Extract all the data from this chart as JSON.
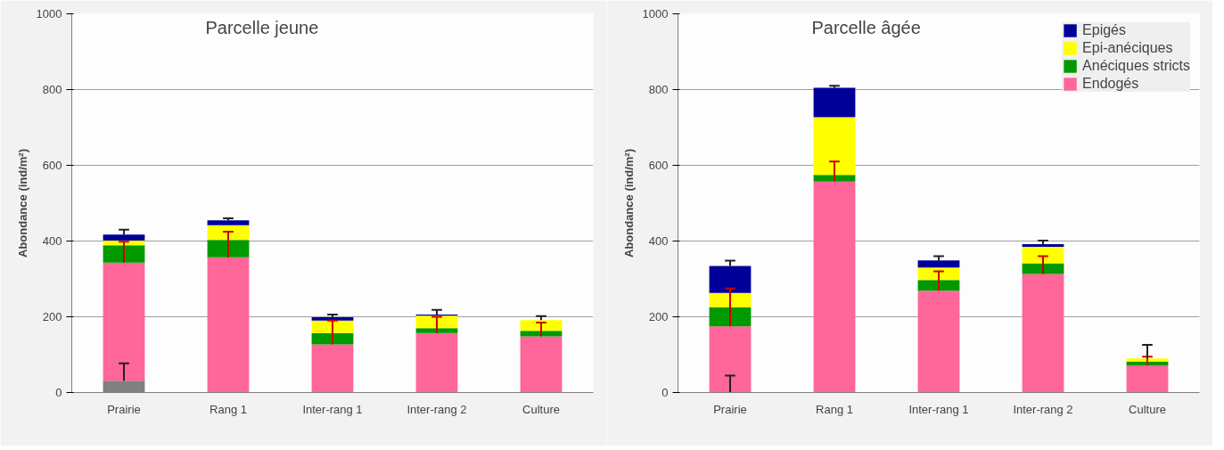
{
  "chart_data": [
    {
      "type": "bar",
      "title": "Parcelle jeune",
      "ylabel": "Abondance (ind/m²)",
      "stacked": true,
      "grid": "y",
      "legend": false,
      "categories": [
        "Prairie",
        "Rang 1",
        "Inter-rang 1",
        "Inter-rang 2",
        "Culture"
      ],
      "ylim": [
        0,
        1000
      ],
      "yticks": [
        0,
        200,
        400,
        600,
        800,
        1000
      ],
      "series": [
        {
          "color": "#808080",
          "values": [
            31,
            0,
            0,
            0,
            0
          ],
          "errors": [
            [
              31,
              77
            ],
            null,
            null,
            null,
            null
          ]
        },
        {
          "color": "#ff6699",
          "values": [
            312,
            357,
            127,
            157,
            148
          ],
          "errors": [
            [
              343,
              398
            ],
            [
              357,
              425
            ],
            [
              127,
              190
            ],
            [
              157,
              200
            ],
            [
              148,
              185
            ]
          ]
        },
        {
          "color": "#009900",
          "values": [
            46,
            46,
            30,
            13,
            15
          ]
        },
        {
          "color": "#ffff00",
          "values": [
            12,
            39,
            33,
            33,
            28
          ]
        },
        {
          "color": "#000099",
          "values": [
            16,
            13,
            9,
            3,
            0
          ],
          "errors": [
            [
              417,
              430
            ],
            [
              455,
              460
            ],
            [
              199,
              206
            ],
            [
              206,
              218
            ],
            [
              191,
              202
            ]
          ]
        }
      ]
    },
    {
      "type": "bar",
      "title": "Parcelle âgée",
      "ylabel": "Abondance (ind/m²)",
      "stacked": true,
      "grid": "y",
      "legend": "top right",
      "categories": [
        "Prairie",
        "Rang 1",
        "Inter-rang 1",
        "Inter-rang 2",
        "Culture"
      ],
      "ylim": [
        0,
        1000
      ],
      "yticks": [
        0,
        200,
        400,
        600,
        800,
        1000
      ],
      "series": [
        {
          "color": "#808080",
          "values": [
            0,
            0,
            0,
            0,
            0
          ],
          "errors": [
            [
              0,
              45
            ],
            null,
            null,
            null,
            null
          ]
        },
        {
          "name": "Endogés",
          "color": "#ff6699",
          "values": [
            175,
            557,
            269,
            313,
            72
          ],
          "errors": [
            [
              175,
              275
            ],
            [
              557,
              610
            ],
            [
              269,
              320
            ],
            [
              313,
              360
            ],
            [
              72,
              95
            ]
          ]
        },
        {
          "name": "Anéciques stricts",
          "color": "#009900",
          "values": [
            50,
            18,
            28,
            28,
            10
          ]
        },
        {
          "name": "Epi-anéciques",
          "color": "#ffff00",
          "values": [
            38,
            152,
            33,
            44,
            8
          ]
        },
        {
          "name": "Epigés",
          "color": "#000099",
          "values": [
            71,
            78,
            19,
            7,
            0
          ],
          "errors": [
            [
              334,
              348
            ],
            [
              805,
              810
            ],
            [
              349,
              360
            ],
            [
              392,
              401
            ],
            [
              90,
              126
            ]
          ]
        }
      ]
    }
  ]
}
